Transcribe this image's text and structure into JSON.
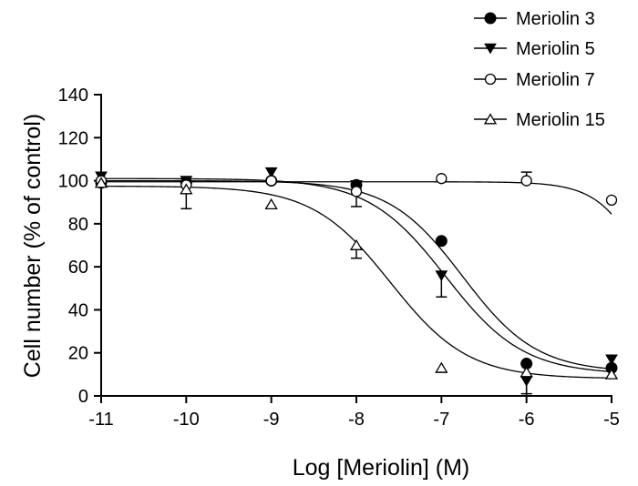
{
  "chart_data": {
    "type": "scatter",
    "title": "",
    "xlabel": "Log [Meriolin] (M)",
    "ylabel": "Cell number (% of control)",
    "xlim": [
      -11,
      -5
    ],
    "ylim": [
      0,
      140
    ],
    "x_ticks": [
      "-11",
      "-10",
      "-9",
      "-8",
      "-7",
      "-6",
      "-5"
    ],
    "y_ticks": [
      "0",
      "20",
      "40",
      "60",
      "80",
      "100",
      "120",
      "140"
    ],
    "grid": false,
    "legend_position": "top-right",
    "series": [
      {
        "name": "Meriolin 3",
        "marker": "filled-circle",
        "x": [
          -11,
          -10,
          -9,
          -8,
          -7,
          -6,
          -5
        ],
        "y": [
          99,
          99,
          100,
          98,
          72,
          15,
          13
        ],
        "error_up": [
          0,
          0,
          0,
          0,
          0,
          0,
          0
        ],
        "error_down": [
          0,
          0,
          0,
          0,
          0,
          14,
          0
        ],
        "fit": {
          "top": 100,
          "bottom": 11,
          "logEC50": -6.75,
          "hill": 1.0
        }
      },
      {
        "name": "Meriolin 5",
        "marker": "filled-triangle-down",
        "x": [
          -11,
          -10,
          -9,
          -8,
          -7,
          -6,
          -5
        ],
        "y": [
          102,
          100,
          104,
          98,
          56,
          7,
          17
        ],
        "error_up": [
          0,
          0,
          0,
          0,
          0,
          0,
          0
        ],
        "error_down": [
          0,
          0,
          0,
          0,
          10,
          7,
          0
        ],
        "fit": {
          "top": 101,
          "bottom": 10,
          "logEC50": -6.95,
          "hill": 0.95
        }
      },
      {
        "name": "Meriolin 7",
        "marker": "open-circle",
        "x": [
          -11,
          -10,
          -9,
          -8,
          -7,
          -6,
          -5
        ],
        "y": [
          100,
          98,
          100,
          95,
          101,
          100,
          91
        ],
        "error_up": [
          0,
          0,
          0,
          0,
          0,
          4,
          0
        ],
        "error_down": [
          0,
          0,
          0,
          7,
          0,
          0,
          0
        ],
        "fit": {
          "top": 99.5,
          "bottom": 0,
          "logEC50": -4.5,
          "hill": 1.5
        }
      },
      {
        "name": "Meriolin 15",
        "marker": "open-triangle-up",
        "x": [
          -11,
          -10,
          -9,
          -8,
          -7,
          -6,
          -5
        ],
        "y": [
          99,
          96,
          89,
          70,
          13,
          11,
          10
        ],
        "error_up": [
          0,
          0,
          0,
          0,
          0,
          0,
          0
        ],
        "error_down": [
          0,
          9,
          0,
          6,
          2,
          0,
          0
        ],
        "fit": {
          "top": 97.5,
          "bottom": 8,
          "logEC50": -7.6,
          "hill": 0.95
        }
      }
    ]
  }
}
